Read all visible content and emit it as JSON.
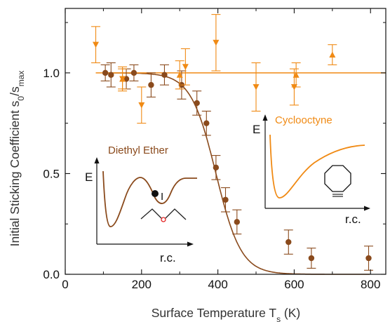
{
  "chart_data": {
    "type": "scatter",
    "xlabel_text": "Surface Temperature T",
    "xlabel_sub": "s",
    "xlabel_unit": " (K)",
    "ylabel_text": "Initial Sticking Coefficient s",
    "ylabel_sub1": "0",
    "ylabel_mid": "/s",
    "ylabel_sub2": "max",
    "xlim": [
      0,
      840
    ],
    "ylim": [
      0,
      1.32
    ],
    "xticks": [
      "0",
      "200",
      "400",
      "600",
      "800"
    ],
    "yticks": [
      "0.0",
      "0.5",
      "1.0"
    ],
    "grid": false,
    "colors": {
      "diethyl": "#8a4a1c",
      "cyclo": "#f08a14",
      "axis": "#111111"
    },
    "series": [
      {
        "key": "diethyl",
        "marker": "circle",
        "points": [
          {
            "x": 105,
            "y": 1.0,
            "e": 0.04
          },
          {
            "x": 120,
            "y": 0.99,
            "e": 0.06
          },
          {
            "x": 160,
            "y": 0.97,
            "e": 0.05
          },
          {
            "x": 180,
            "y": 1.0,
            "e": 0.04
          },
          {
            "x": 225,
            "y": 0.94,
            "e": 0.06
          },
          {
            "x": 260,
            "y": 0.99,
            "e": 0.05
          },
          {
            "x": 305,
            "y": 0.94,
            "e": 0.07
          },
          {
            "x": 345,
            "y": 0.85,
            "e": 0.06
          },
          {
            "x": 370,
            "y": 0.75,
            "e": 0.06
          },
          {
            "x": 395,
            "y": 0.53,
            "e": 0.06
          },
          {
            "x": 420,
            "y": 0.37,
            "e": 0.06
          },
          {
            "x": 450,
            "y": 0.26,
            "e": 0.06
          },
          {
            "x": 585,
            "y": 0.16,
            "e": 0.06
          },
          {
            "x": 645,
            "y": 0.08,
            "e": 0.05
          },
          {
            "x": 795,
            "y": 0.08,
            "e": 0.06
          }
        ]
      },
      {
        "key": "cyclo",
        "marker": "triangle-down",
        "points": [
          {
            "x": 80,
            "y": 1.14,
            "e": 0.09
          },
          {
            "x": 150,
            "y": 0.97,
            "e": 0.06
          },
          {
            "x": 200,
            "y": 0.84,
            "e": 0.09
          },
          {
            "x": 315,
            "y": 1.03,
            "e": 0.09
          },
          {
            "x": 395,
            "y": 1.15,
            "e": 0.14
          },
          {
            "x": 500,
            "y": 0.93,
            "e": 0.12
          },
          {
            "x": 600,
            "y": 0.93,
            "e": 0.09
          }
        ]
      },
      {
        "key": "cyclo",
        "marker": "triangle-up",
        "points": [
          {
            "x": 150,
            "y": 0.97,
            "e": 0.05
          },
          {
            "x": 300,
            "y": 0.99,
            "e": 0.07
          },
          {
            "x": 605,
            "y": 0.99,
            "e": 0.06
          },
          {
            "x": 700,
            "y": 1.09,
            "e": 0.05
          }
        ]
      }
    ],
    "fits": {
      "diethyl_sigmoid": {
        "midpoint": 395,
        "width": 33,
        "top": 1.0
      },
      "cyclo_constant": {
        "y": 1.0,
        "x_from": 80,
        "x_to": 840
      }
    },
    "inset_diethyl": {
      "energy_label": "E",
      "coord_label": "r.c.",
      "title": "Diethyl Ether",
      "point_label": "I"
    },
    "inset_cyclo": {
      "energy_label": "E",
      "coord_label": "r.c.",
      "title": "Cyclooctyne"
    }
  }
}
